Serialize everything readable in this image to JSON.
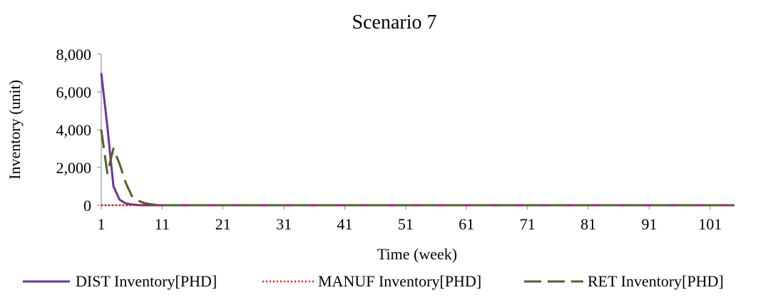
{
  "chart_data": {
    "type": "line",
    "title": "Scenario 7",
    "xlabel": "Time (week)",
    "ylabel": "Inventory (unit)",
    "xlim": [
      1,
      105
    ],
    "ylim": [
      0,
      8000
    ],
    "x_ticks": [
      1,
      11,
      21,
      31,
      41,
      51,
      61,
      71,
      81,
      91,
      101
    ],
    "x_tick_labels": [
      "1",
      "11",
      "21",
      "31",
      "41",
      "51",
      "61",
      "71",
      "81",
      "91",
      "101"
    ],
    "y_ticks": [
      0,
      2000,
      4000,
      6000,
      8000
    ],
    "y_tick_labels": [
      "0",
      "2,000",
      "4,000",
      "6,000",
      "8,000"
    ],
    "grid": false,
    "legend_position": "bottom",
    "series": [
      {
        "name": "DIST Inventory[PHD]",
        "color": "#7030a0",
        "style": "solid",
        "points": [
          [
            1,
            7000
          ],
          [
            2,
            4200
          ],
          [
            3,
            1000
          ],
          [
            4,
            300
          ],
          [
            5,
            100
          ],
          [
            6,
            40
          ],
          [
            7,
            10
          ],
          [
            8,
            0
          ],
          [
            105,
            0
          ]
        ]
      },
      {
        "name": "MANUF Inventory[PHD]",
        "color": "#ff0000",
        "style": "dotted",
        "points": [
          [
            1,
            0
          ],
          [
            105,
            0
          ]
        ]
      },
      {
        "name": "RET Inventory[PHD]",
        "color": "#4f6228",
        "style": "dashed",
        "points": [
          [
            1,
            4000
          ],
          [
            2,
            1700
          ],
          [
            3,
            3000
          ],
          [
            4,
            2200
          ],
          [
            5,
            1200
          ],
          [
            6,
            500
          ],
          [
            7,
            250
          ],
          [
            8,
            120
          ],
          [
            9,
            60
          ],
          [
            10,
            20
          ],
          [
            11,
            0
          ],
          [
            105,
            0
          ]
        ]
      }
    ]
  }
}
